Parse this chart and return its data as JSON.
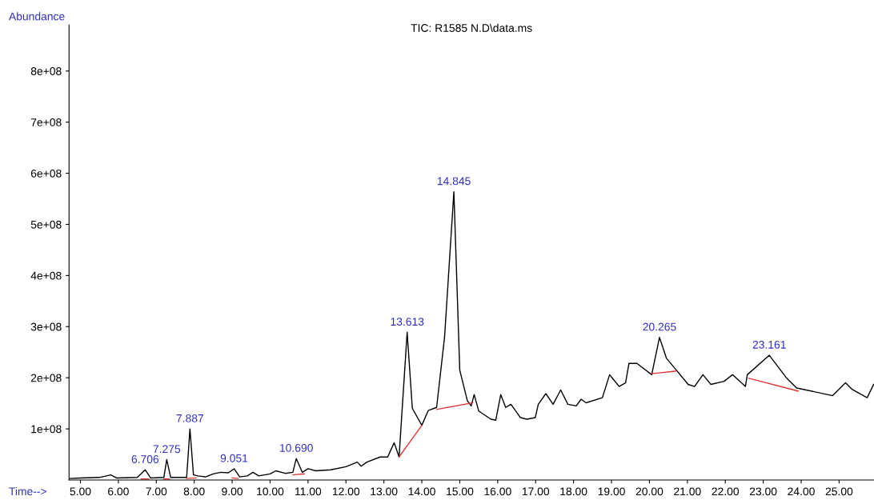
{
  "chart_data": {
    "type": "line",
    "title": "TIC: R1585 N.D\\data.ms",
    "xlabel": "Time-->",
    "ylabel": "Abundance",
    "xlim": [
      4.7,
      25.92
    ],
    "ylim": [
      0,
      890000000
    ],
    "xticks": [
      {
        "value": 5,
        "label": "5.00"
      },
      {
        "value": 6,
        "label": "6.00"
      },
      {
        "value": 7,
        "label": "7.00"
      },
      {
        "value": 8,
        "label": "8.00"
      },
      {
        "value": 9,
        "label": "9.00"
      },
      {
        "value": 10,
        "label": "10.00"
      },
      {
        "value": 11,
        "label": "11.00"
      },
      {
        "value": 12,
        "label": "12.00"
      },
      {
        "value": 13,
        "label": "13.00"
      },
      {
        "value": 14,
        "label": "14.00"
      },
      {
        "value": 15,
        "label": "15.00"
      },
      {
        "value": 16,
        "label": "16.00"
      },
      {
        "value": 17,
        "label": "17.00"
      },
      {
        "value": 18,
        "label": "18.00"
      },
      {
        "value": 19,
        "label": "19.00"
      },
      {
        "value": 20,
        "label": "20.00"
      },
      {
        "value": 21,
        "label": "21.00"
      },
      {
        "value": 22,
        "label": "22.00"
      },
      {
        "value": 23,
        "label": "23.00"
      },
      {
        "value": 24,
        "label": "24.00"
      },
      {
        "value": 25,
        "label": "25.00"
      }
    ],
    "yticks": [
      {
        "value": 100000000,
        "label": "1e+08"
      },
      {
        "value": 200000000,
        "label": "2e+08"
      },
      {
        "value": 300000000,
        "label": "3e+08"
      },
      {
        "value": 400000000,
        "label": "4e+08"
      },
      {
        "value": 500000000,
        "label": "5e+08"
      },
      {
        "value": 600000000,
        "label": "6e+08"
      },
      {
        "value": 700000000,
        "label": "7e+08"
      },
      {
        "value": 800000000,
        "label": "8e+08"
      }
    ],
    "grid": false,
    "legend": false,
    "series": [
      {
        "color": "#000000",
        "x": [
          4.73,
          5.0,
          5.5,
          5.8,
          5.95,
          6.5,
          6.706,
          6.85,
          7.2,
          7.275,
          7.38,
          7.8,
          7.887,
          7.98,
          8.1,
          8.3,
          8.5,
          8.7,
          8.9,
          9.051,
          9.2,
          9.4,
          9.55,
          9.7,
          10.0,
          10.15,
          10.4,
          10.6,
          10.69,
          10.85,
          11.0,
          11.2,
          11.6,
          12.0,
          12.3,
          12.4,
          12.55,
          12.9,
          13.1,
          13.27,
          13.4,
          13.613,
          13.75,
          14.0,
          14.17,
          14.39,
          14.6,
          14.845,
          15.0,
          15.2,
          15.3,
          15.38,
          15.5,
          15.82,
          15.95,
          16.08,
          16.21,
          16.35,
          16.6,
          16.77,
          16.99,
          17.07,
          17.27,
          17.46,
          17.66,
          17.85,
          18.07,
          18.2,
          18.33,
          18.76,
          18.95,
          19.2,
          19.37,
          19.46,
          19.67,
          20.06,
          20.265,
          20.45,
          20.71,
          21.02,
          21.19,
          21.41,
          21.62,
          21.97,
          22.19,
          22.53,
          22.58,
          23.161,
          23.62,
          23.88,
          24.83,
          25.17,
          25.35,
          25.74,
          25.91
        ],
        "values": [
          3000000,
          4000000,
          5000000,
          10000000,
          4000000,
          5000000,
          20000000,
          4000000,
          5000000,
          40000000,
          5000000,
          5000000,
          100000000,
          10000000,
          8000000,
          6000000,
          12000000,
          15000000,
          14000000,
          22000000,
          6000000,
          8000000,
          15000000,
          8000000,
          12000000,
          18000000,
          13000000,
          15000000,
          42000000,
          15000000,
          22000000,
          18000000,
          20000000,
          26000000,
          35000000,
          27000000,
          35000000,
          45000000,
          45000000,
          73000000,
          45000000,
          289000000,
          140000000,
          107000000,
          136000000,
          142000000,
          280000000,
          564000000,
          215000000,
          155000000,
          145000000,
          167000000,
          135000000,
          119000000,
          117000000,
          167000000,
          142000000,
          148000000,
          122000000,
          119000000,
          122000000,
          148000000,
          169000000,
          148000000,
          176000000,
          148000000,
          145000000,
          158000000,
          151000000,
          161000000,
          206000000,
          183000000,
          190000000,
          228000000,
          228000000,
          206000000,
          279000000,
          238000000,
          215000000,
          187000000,
          183000000,
          206000000,
          187000000,
          193000000,
          206000000,
          183000000,
          206000000,
          244000000,
          199000000,
          180000000,
          165000000,
          190000000,
          177000000,
          161000000,
          187000000
        ]
      },
      {
        "color": "#e03030",
        "x": [
          6.6,
          6.8
        ],
        "values": [
          2000000,
          2000000
        ]
      },
      {
        "color": "#e03030",
        "x": [
          7.2,
          7.35
        ],
        "values": [
          2000000,
          2000000
        ]
      },
      {
        "color": "#e03030",
        "x": [
          7.8,
          8.05
        ],
        "values": [
          3000000,
          4000000
        ]
      },
      {
        "color": "#e03030",
        "x": [
          9.0,
          9.15
        ],
        "values": [
          4000000,
          3000000
        ]
      },
      {
        "color": "#e03030",
        "x": [
          10.6,
          10.9
        ],
        "values": [
          10000000,
          12000000
        ]
      },
      {
        "color": "#e03030",
        "x": [
          13.4,
          14.0
        ],
        "values": [
          45000000,
          107000000
        ]
      },
      {
        "color": "#e03030",
        "x": [
          14.39,
          15.34
        ],
        "values": [
          138000000,
          151000000
        ]
      },
      {
        "color": "#e03030",
        "x": [
          20.06,
          20.71
        ],
        "values": [
          208000000,
          213000000
        ]
      },
      {
        "color": "#e03030",
        "x": [
          22.62,
          23.92
        ],
        "values": [
          199000000,
          174000000
        ]
      }
    ],
    "annotations": [
      {
        "text": "6.706",
        "x": 6.706,
        "y": 20000000
      },
      {
        "text": "7.275",
        "x": 7.275,
        "y": 40000000
      },
      {
        "text": "7.887",
        "x": 7.887,
        "y": 100000000
      },
      {
        "text": "9.051",
        "x": 9.051,
        "y": 22000000
      },
      {
        "text": "10.690",
        "x": 10.69,
        "y": 42000000
      },
      {
        "text": "13.613",
        "x": 13.613,
        "y": 289000000
      },
      {
        "text": "14.845",
        "x": 14.845,
        "y": 564000000
      },
      {
        "text": "20.265",
        "x": 20.265,
        "y": 279000000
      },
      {
        "text": "23.161",
        "x": 23.161,
        "y": 244000000
      }
    ]
  }
}
